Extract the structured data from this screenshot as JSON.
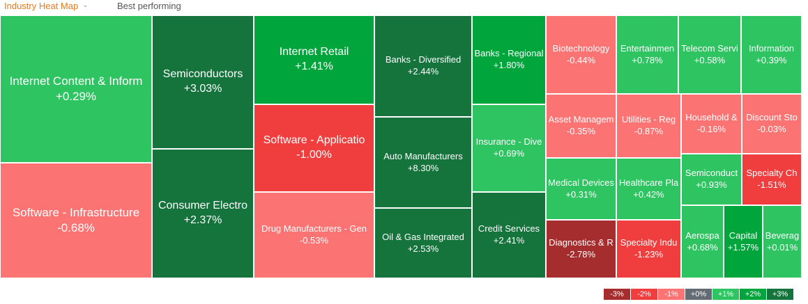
{
  "tabs": {
    "active": "Industry Heat Map",
    "other": "Best performing"
  },
  "colors": {
    "up_strong": "#15733c",
    "up_mid": "#00a63c",
    "up_light": "#2fc462",
    "down_light": "#fc7373",
    "down_mid": "#f03e3e",
    "down_strong": "#a62d2d",
    "neutral": "#636b75"
  },
  "tiles": [
    {
      "name": "Internet Content & Inform",
      "change": "+0.29%"
    },
    {
      "name": "Software - Infrastructure",
      "change": "-0.68%"
    },
    {
      "name": "Semiconductors",
      "change": "+3.03%"
    },
    {
      "name": "Consumer Electro",
      "change": "+2.37%"
    },
    {
      "name": "Internet Retail",
      "change": "+1.41%"
    },
    {
      "name": "Software - Applicatio",
      "change": "-1.00%"
    },
    {
      "name": "Drug Manufacturers - Gen",
      "change": "-0.53%"
    },
    {
      "name": "Banks - Diversified",
      "change": "+2.44%"
    },
    {
      "name": "Auto Manufacturers",
      "change": "+8.30%"
    },
    {
      "name": "Oil & Gas Integrated",
      "change": "+2.53%"
    },
    {
      "name": "Banks - Regional",
      "change": "+1.80%"
    },
    {
      "name": "Insurance - Dive",
      "change": "+0.69%"
    },
    {
      "name": "Credit Services",
      "change": "+2.41%"
    },
    {
      "name": "Biotechnology",
      "change": "-0.44%"
    },
    {
      "name": "Entertainmen",
      "change": "+0.78%"
    },
    {
      "name": "Telecom Servi",
      "change": "+0.58%"
    },
    {
      "name": "Information",
      "change": "+0.39%"
    },
    {
      "name": "Asset Managem",
      "change": "-0.35%"
    },
    {
      "name": "Utilities - Reg",
      "change": "-0.87%"
    },
    {
      "name": "Household &",
      "change": "-0.16%"
    },
    {
      "name": "Discount Sto",
      "change": "-0.03%"
    },
    {
      "name": "Medical Devices",
      "change": "+0.31%"
    },
    {
      "name": "Healthcare Pla",
      "change": "+0.42%"
    },
    {
      "name": "Semiconduct",
      "change": "+0.93%"
    },
    {
      "name": "Specialty Ch",
      "change": "-1.51%"
    },
    {
      "name": "Diagnostics & R",
      "change": "-2.78%"
    },
    {
      "name": "Specialty Indu",
      "change": "-1.23%"
    },
    {
      "name": "Aerospa",
      "change": "+0.68%"
    },
    {
      "name": "Capital",
      "change": "+1.57%"
    },
    {
      "name": "Beverag",
      "change": "+0.01%"
    }
  ],
  "legend": [
    {
      "label": "-3%",
      "color": "#a62d2d"
    },
    {
      "label": "-2%",
      "color": "#f03e3e"
    },
    {
      "label": "-1%",
      "color": "#fc7373"
    },
    {
      "label": "+0%",
      "color": "#636b75"
    },
    {
      "label": "+1%",
      "color": "#2fc462"
    },
    {
      "label": "+2%",
      "color": "#00a63c"
    },
    {
      "label": "+3%",
      "color": "#15733c"
    }
  ]
}
